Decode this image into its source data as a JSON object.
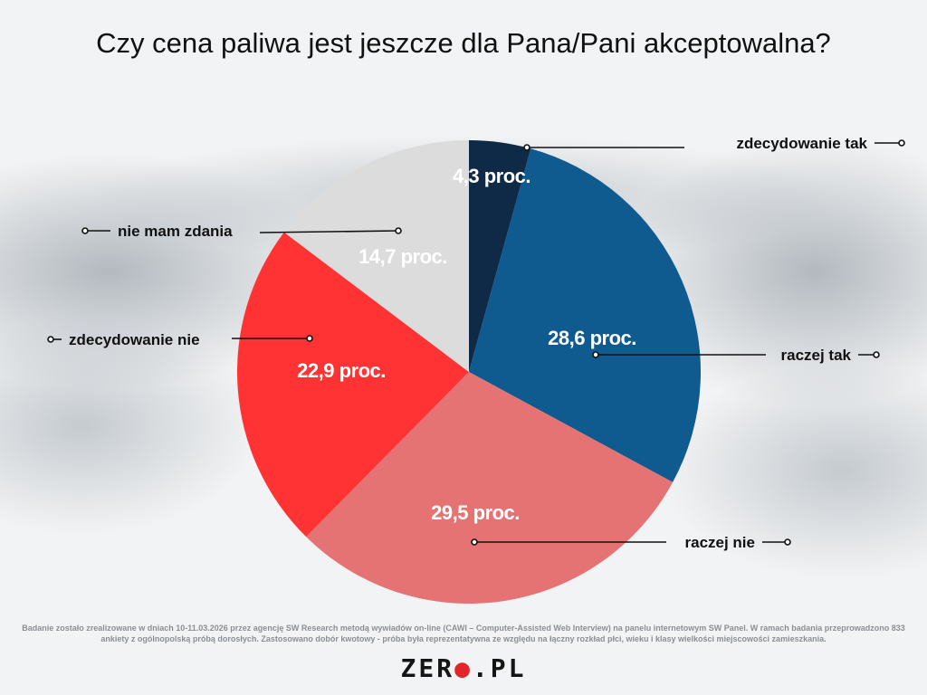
{
  "title": "Czy cena paliwa jest jeszcze dla Pana/Pani akceptowalna?",
  "footnote": "Badanie zostało zrealizowane w dniach 10-11.03.2026 przez agencję SW Research metodą wywiadów on-line (CAWI – Computer-Assisted Web Interview) na panelu internetowym SW Panel. W ramach badania przeprowadzono 833 ankiety z ogólnopolską próbą dorosłych. Zastosowano dobór kwotowy - próba była reprezentatywna ze względu na łączny rozkład płci, wieku i klasy wielkości miejscowości zamieszkania.",
  "logo": {
    "before": "ZER",
    "dot": "●",
    "after": ".PL"
  },
  "chart_data": {
    "type": "pie",
    "title": "Czy cena paliwa jest jeszcze dla Pana/Pani akceptowalna?",
    "legend": "leader-line labels",
    "slices": [
      {
        "name": "zdecydowanie tak",
        "value": 4.3,
        "label": "4,3 proc.",
        "color": "#0e2a47"
      },
      {
        "name": "raczej tak",
        "value": 28.6,
        "label": "28,6 proc.",
        "color": "#0f5a8f"
      },
      {
        "name": "raczej nie",
        "value": 29.5,
        "label": "29,5 proc.",
        "color": "#e57373"
      },
      {
        "name": "zdecydowanie nie",
        "value": 22.9,
        "label": "22,9 proc.",
        "color": "#ff3333"
      },
      {
        "name": "nie mam zdania",
        "value": 14.7,
        "label": "14,7 proc.",
        "color": "#dcdcdc"
      }
    ]
  }
}
